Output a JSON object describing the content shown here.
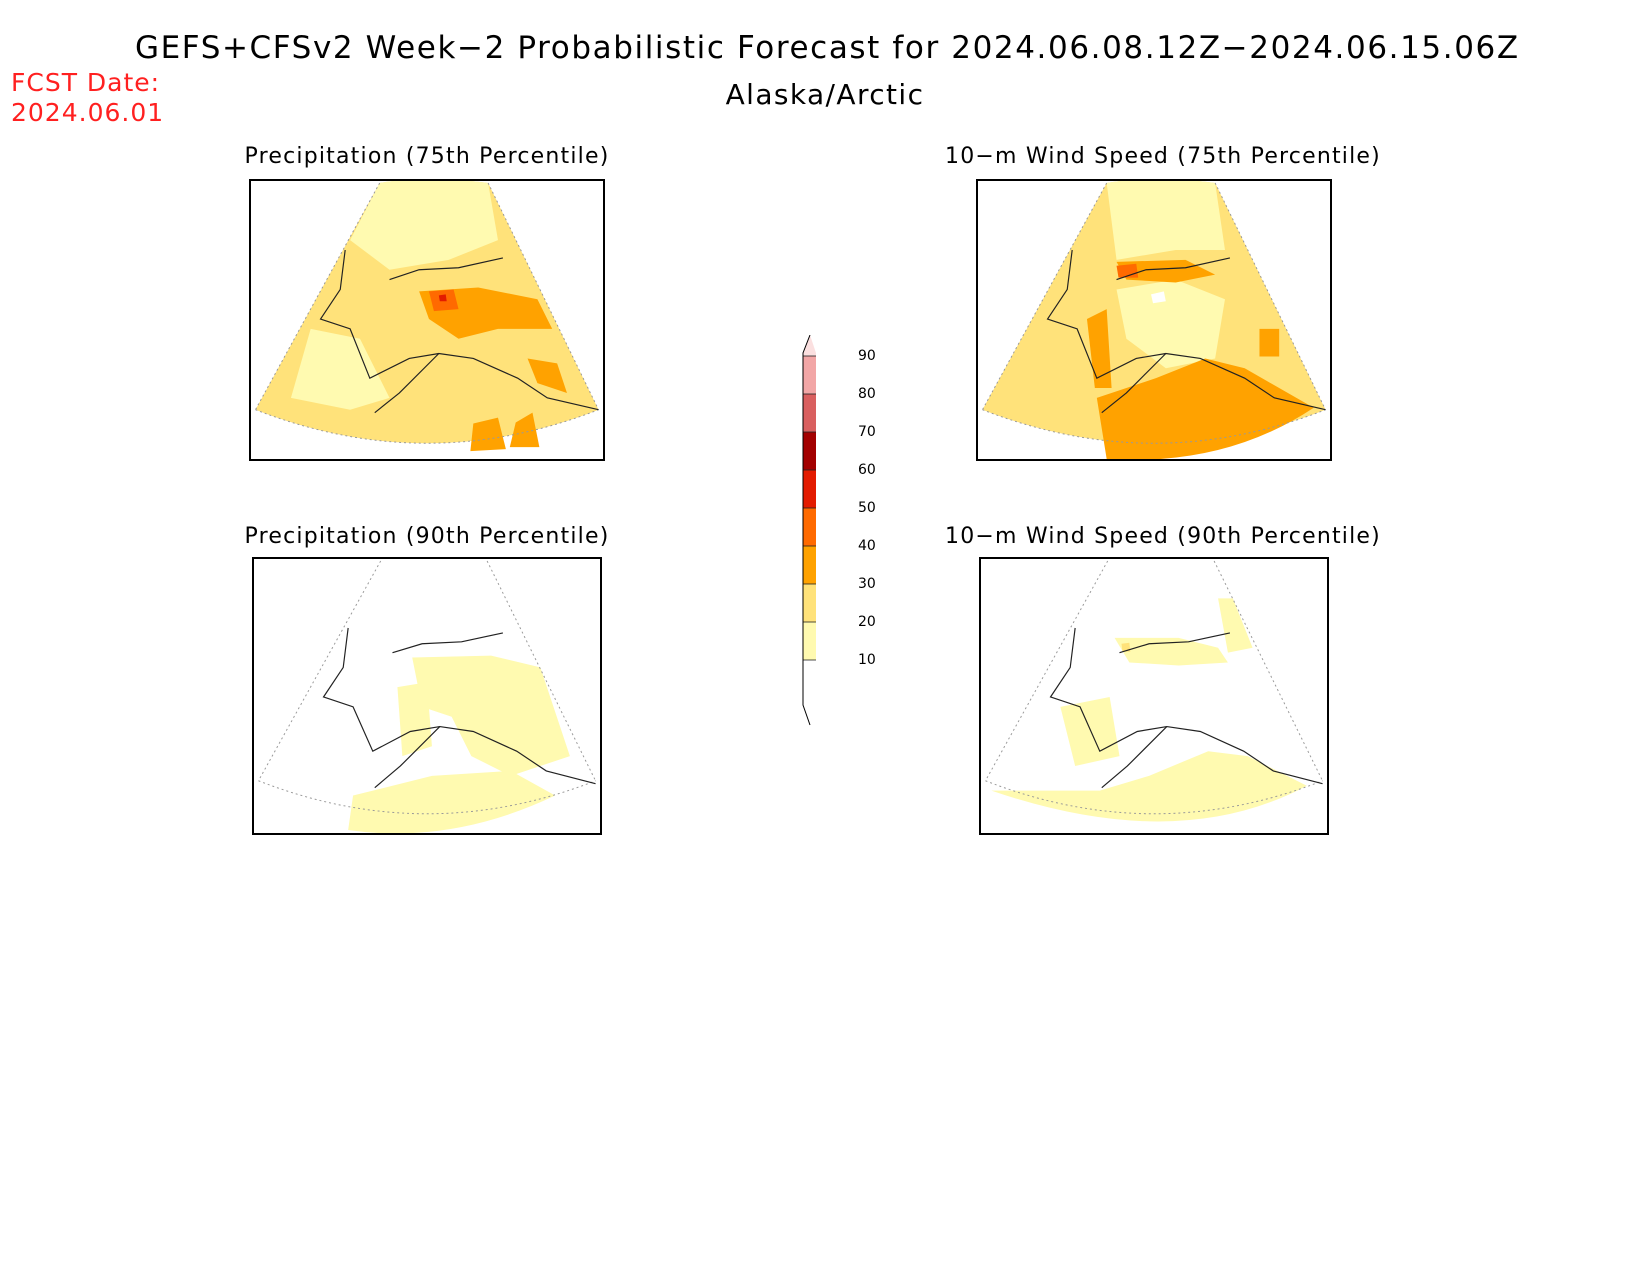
{
  "header": {
    "title": "GEFS+CFSv2 Week−2 Probabilistic Forecast for 2024.06.08.12Z−2024.06.15.06Z",
    "subtitle": "Alaska/Arctic",
    "fcst_date_label": "FCST Date:",
    "fcst_date_value": "2024.06.01"
  },
  "panels": [
    {
      "title": "Precipitation (75th Percentile)"
    },
    {
      "title": "10−m Wind Speed (75th Percentile)"
    },
    {
      "title": "Precipitation (90th Percentile)"
    },
    {
      "title": "10−m Wind Speed (90th Percentile)"
    }
  ],
  "colorbar": {
    "labels": [
      "90",
      "80",
      "70",
      "60",
      "50",
      "40",
      "30",
      "20",
      "10"
    ],
    "colors": [
      "#fbe0e0",
      "#f2a6a6",
      "#d95f5f",
      "#a30000",
      "#e31b00",
      "#ff6a00",
      "#ffa200",
      "#ffe27a",
      "#fffab0"
    ]
  },
  "colors": {
    "c10": "#fffab0",
    "c20": "#ffe27a",
    "c30": "#ffa200",
    "c40": "#ff6a00",
    "c50": "#e31b00",
    "fcst_red": "#ff2020"
  }
}
